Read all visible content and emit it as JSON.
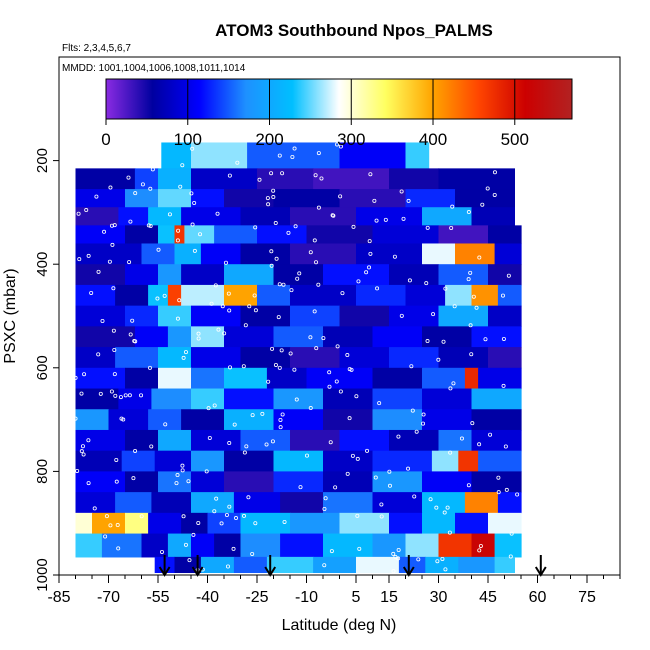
{
  "chart_data": {
    "type": "heatmap",
    "title": "ATOM3 Southbound Npos_PALMS",
    "subtitle_flights": "Flts: 2,3,4,5,6,7",
    "subtitle_dates": "MMDD: 1001,1004,1006,1008,1011,1014",
    "xlabel": "Latitude (deg N)",
    "ylabel": "PSXC (mbar)",
    "xlim": [
      -85,
      85
    ],
    "ylim": [
      1000,
      0
    ],
    "x_ticks": [
      -85,
      -70,
      -55,
      -40,
      -25,
      -10,
      5,
      15,
      30,
      45,
      60,
      75
    ],
    "y_ticks": [
      200,
      400,
      600,
      800,
      1000
    ],
    "colorbar": {
      "min": 0,
      "max": 570,
      "ticks": [
        0,
        100,
        200,
        300,
        400,
        500
      ],
      "colors": [
        "#8a2be2",
        "#0000a0",
        "#0000ff",
        "#1e90ff",
        "#00bfff",
        "#ffffff",
        "#ffff60",
        "#ffa500",
        "#ff4500",
        "#cc0000",
        "#b22222"
      ]
    },
    "data_extent": {
      "lat_range": [
        -80,
        55
      ],
      "pressure_range_top": [
        165,
        215
      ],
      "pressure_range_bottom": 990
    },
    "layers": [
      {
        "pressure": [
          165,
          215
        ],
        "segments": [
          [
            -54,
            -45,
            220
          ],
          [
            -45,
            -28,
            260
          ],
          [
            -28,
            0,
            150
          ],
          [
            0,
            20,
            110
          ],
          [
            20,
            27,
            240
          ]
        ]
      },
      {
        "pressure": [
          215,
          255
        ],
        "segments": [
          [
            -80,
            -62,
            60
          ],
          [
            -62,
            -55,
            140
          ],
          [
            -55,
            -45,
            210
          ],
          [
            -45,
            -25,
            80
          ],
          [
            -25,
            -8,
            40
          ],
          [
            -8,
            15,
            30
          ],
          [
            15,
            30,
            50
          ],
          [
            30,
            53,
            60
          ]
        ]
      },
      {
        "pressure": [
          255,
          290
        ],
        "segments": [
          [
            -80,
            -65,
            100
          ],
          [
            -65,
            -55,
            170
          ],
          [
            -55,
            -45,
            250
          ],
          [
            -45,
            -35,
            120
          ],
          [
            -35,
            -20,
            50
          ],
          [
            -20,
            0,
            60
          ],
          [
            0,
            20,
            40
          ],
          [
            20,
            35,
            130
          ],
          [
            35,
            53,
            60
          ]
        ]
      },
      {
        "pressure": [
          290,
          325
        ],
        "segments": [
          [
            -80,
            -67,
            40
          ],
          [
            -67,
            -58,
            120
          ],
          [
            -58,
            -48,
            220
          ],
          [
            -48,
            -30,
            100
          ],
          [
            -30,
            -15,
            70
          ],
          [
            -15,
            5,
            40
          ],
          [
            5,
            25,
            100
          ],
          [
            25,
            40,
            200
          ],
          [
            40,
            53,
            70
          ]
        ]
      },
      {
        "pressure": [
          325,
          360
        ],
        "segments": [
          [
            -80,
            -65,
            110
          ],
          [
            -65,
            -55,
            60
          ],
          [
            -55,
            -50,
            230
          ],
          [
            -50,
            -47,
            470
          ],
          [
            -47,
            -38,
            250
          ],
          [
            -38,
            -25,
            150
          ],
          [
            -25,
            -10,
            120
          ],
          [
            -10,
            10,
            50
          ],
          [
            10,
            30,
            90
          ],
          [
            30,
            45,
            30
          ],
          [
            45,
            55,
            60
          ]
        ]
      },
      {
        "pressure": [
          360,
          400
        ],
        "segments": [
          [
            -80,
            -60,
            80
          ],
          [
            -60,
            -50,
            150
          ],
          [
            -50,
            -42,
            210
          ],
          [
            -42,
            -30,
            110
          ],
          [
            -30,
            -15,
            60
          ],
          [
            -15,
            5,
            40
          ],
          [
            5,
            25,
            80
          ],
          [
            25,
            35,
            280
          ],
          [
            35,
            47,
            420
          ],
          [
            47,
            55,
            90
          ]
        ]
      },
      {
        "pressure": [
          400,
          440
        ],
        "segments": [
          [
            -80,
            -65,
            50
          ],
          [
            -65,
            -55,
            100
          ],
          [
            -55,
            -48,
            180
          ],
          [
            -48,
            -35,
            80
          ],
          [
            -35,
            -20,
            200
          ],
          [
            -20,
            -5,
            60
          ],
          [
            -5,
            15,
            120
          ],
          [
            15,
            30,
            70
          ],
          [
            30,
            45,
            150
          ],
          [
            45,
            55,
            50
          ]
        ]
      },
      {
        "pressure": [
          440,
          480
        ],
        "segments": [
          [
            -80,
            -68,
            120
          ],
          [
            -68,
            -58,
            60
          ],
          [
            -58,
            -52,
            230
          ],
          [
            -52,
            -48,
            460
          ],
          [
            -48,
            -35,
            270
          ],
          [
            -35,
            -25,
            400
          ],
          [
            -25,
            -15,
            150
          ],
          [
            -15,
            5,
            80
          ],
          [
            5,
            20,
            130
          ],
          [
            20,
            32,
            90
          ],
          [
            32,
            40,
            260
          ],
          [
            40,
            48,
            410
          ],
          [
            48,
            55,
            150
          ]
        ]
      },
      {
        "pressure": [
          480,
          520
        ],
        "segments": [
          [
            -80,
            -65,
            90
          ],
          [
            -65,
            -55,
            130
          ],
          [
            -55,
            -45,
            240
          ],
          [
            -45,
            -30,
            110
          ],
          [
            -30,
            -15,
            60
          ],
          [
            -15,
            0,
            140
          ],
          [
            0,
            15,
            50
          ],
          [
            15,
            30,
            100
          ],
          [
            30,
            45,
            200
          ],
          [
            45,
            55,
            80
          ]
        ]
      },
      {
        "pressure": [
          520,
          560
        ],
        "segments": [
          [
            -80,
            -62,
            50
          ],
          [
            -62,
            -52,
            110
          ],
          [
            -52,
            -45,
            180
          ],
          [
            -45,
            -35,
            260
          ],
          [
            -35,
            -20,
            90
          ],
          [
            -20,
            -5,
            150
          ],
          [
            -5,
            10,
            70
          ],
          [
            10,
            25,
            110
          ],
          [
            25,
            40,
            60
          ],
          [
            40,
            55,
            120
          ]
        ]
      },
      {
        "pressure": [
          560,
          600
        ],
        "segments": [
          [
            -80,
            -68,
            80
          ],
          [
            -68,
            -55,
            150
          ],
          [
            -55,
            -45,
            220
          ],
          [
            -45,
            -30,
            100
          ],
          [
            -30,
            -15,
            60
          ],
          [
            -15,
            0,
            40
          ],
          [
            0,
            15,
            90
          ],
          [
            15,
            30,
            130
          ],
          [
            30,
            45,
            70
          ],
          [
            45,
            55,
            40
          ]
        ]
      },
      {
        "pressure": [
          600,
          640
        ],
        "segments": [
          [
            -80,
            -65,
            120
          ],
          [
            -65,
            -55,
            60
          ],
          [
            -55,
            -45,
            280
          ],
          [
            -45,
            -35,
            160
          ],
          [
            -35,
            -22,
            230
          ],
          [
            -22,
            -10,
            80
          ],
          [
            -10,
            10,
            110
          ],
          [
            10,
            25,
            60
          ],
          [
            25,
            38,
            150
          ],
          [
            38,
            42,
            480
          ],
          [
            42,
            55,
            100
          ]
        ]
      },
      {
        "pressure": [
          640,
          680
        ],
        "segments": [
          [
            -80,
            -67,
            60
          ],
          [
            -67,
            -57,
            100
          ],
          [
            -57,
            -45,
            170
          ],
          [
            -45,
            -35,
            240
          ],
          [
            -35,
            -20,
            120
          ],
          [
            -20,
            -5,
            180
          ],
          [
            -5,
            10,
            70
          ],
          [
            10,
            25,
            140
          ],
          [
            25,
            40,
            90
          ],
          [
            40,
            55,
            200
          ]
        ]
      },
      {
        "pressure": [
          680,
          720
        ],
        "segments": [
          [
            -80,
            -70,
            180
          ],
          [
            -70,
            -58,
            90
          ],
          [
            -58,
            -48,
            150
          ],
          [
            -48,
            -35,
            60
          ],
          [
            -35,
            -20,
            210
          ],
          [
            -20,
            -5,
            110
          ],
          [
            -5,
            10,
            50
          ],
          [
            10,
            25,
            170
          ],
          [
            25,
            40,
            100
          ],
          [
            40,
            55,
            60
          ]
        ]
      },
      {
        "pressure": [
          720,
          760
        ],
        "segments": [
          [
            -80,
            -65,
            100
          ],
          [
            -65,
            -55,
            60
          ],
          [
            -55,
            -45,
            200
          ],
          [
            -45,
            -30,
            90
          ],
          [
            -30,
            -15,
            150
          ],
          [
            -15,
            0,
            40
          ],
          [
            0,
            15,
            120
          ],
          [
            15,
            30,
            70
          ],
          [
            30,
            40,
            160
          ],
          [
            40,
            55,
            90
          ]
        ]
      },
      {
        "pressure": [
          760,
          800
        ],
        "segments": [
          [
            -80,
            -66,
            70
          ],
          [
            -66,
            -56,
            140
          ],
          [
            -56,
            -45,
            90
          ],
          [
            -45,
            -35,
            180
          ],
          [
            -35,
            -20,
            60
          ],
          [
            -20,
            -5,
            220
          ],
          [
            -5,
            10,
            80
          ],
          [
            10,
            28,
            130
          ],
          [
            28,
            36,
            260
          ],
          [
            36,
            42,
            470
          ],
          [
            42,
            55,
            150
          ]
        ]
      },
      {
        "pressure": [
          800,
          840
        ],
        "segments": [
          [
            -80,
            -65,
            110
          ],
          [
            -65,
            -55,
            60
          ],
          [
            -55,
            -45,
            160
          ],
          [
            -45,
            -35,
            90
          ],
          [
            -35,
            -20,
            40
          ],
          [
            -20,
            -5,
            130
          ],
          [
            -5,
            10,
            70
          ],
          [
            10,
            25,
            180
          ],
          [
            25,
            40,
            110
          ],
          [
            40,
            55,
            60
          ]
        ]
      },
      {
        "pressure": [
          840,
          880
        ],
        "segments": [
          [
            -80,
            -68,
            90
          ],
          [
            -68,
            -57,
            150
          ],
          [
            -57,
            -45,
            70
          ],
          [
            -45,
            -32,
            200
          ],
          [
            -32,
            -18,
            100
          ],
          [
            -18,
            -5,
            50
          ],
          [
            -5,
            10,
            160
          ],
          [
            10,
            25,
            90
          ],
          [
            25,
            38,
            220
          ],
          [
            38,
            48,
            420
          ],
          [
            48,
            55,
            120
          ]
        ]
      },
      {
        "pressure": [
          880,
          920
        ],
        "segments": [
          [
            -80,
            -75,
            300
          ],
          [
            -75,
            -65,
            400
          ],
          [
            -65,
            -58,
            330
          ],
          [
            -58,
            -48,
            100
          ],
          [
            -48,
            -40,
            60
          ],
          [
            -40,
            -30,
            140
          ],
          [
            -30,
            -15,
            220
          ],
          [
            -15,
            0,
            180
          ],
          [
            0,
            15,
            260
          ],
          [
            15,
            25,
            120
          ],
          [
            25,
            35,
            220
          ],
          [
            35,
            45,
            120
          ],
          [
            45,
            55,
            280
          ]
        ]
      },
      {
        "pressure": [
          920,
          965
        ],
        "segments": [
          [
            -80,
            -72,
            240
          ],
          [
            -72,
            -60,
            160
          ],
          [
            -60,
            -52,
            80
          ],
          [
            -52,
            -45,
            200
          ],
          [
            -45,
            -38,
            110
          ],
          [
            -38,
            -30,
            60
          ],
          [
            -30,
            -18,
            170
          ],
          [
            -18,
            -5,
            120
          ],
          [
            -5,
            10,
            220
          ],
          [
            10,
            20,
            180
          ],
          [
            20,
            30,
            260
          ],
          [
            30,
            40,
            470
          ],
          [
            40,
            47,
            520
          ],
          [
            47,
            55,
            230
          ]
        ]
      },
      {
        "pressure": [
          965,
          995
        ],
        "segments": [
          [
            -56,
            -50,
            120
          ],
          [
            -50,
            -42,
            60
          ],
          [
            -42,
            -32,
            200
          ],
          [
            -32,
            -22,
            150
          ],
          [
            -22,
            -8,
            240
          ],
          [
            -8,
            5,
            190
          ],
          [
            5,
            18,
            280
          ],
          [
            18,
            26,
            150
          ],
          [
            26,
            36,
            210
          ],
          [
            36,
            47,
            180
          ],
          [
            47,
            53,
            240
          ]
        ]
      }
    ],
    "arrows_lat": [
      -53,
      -43,
      -21,
      21,
      61
    ]
  }
}
